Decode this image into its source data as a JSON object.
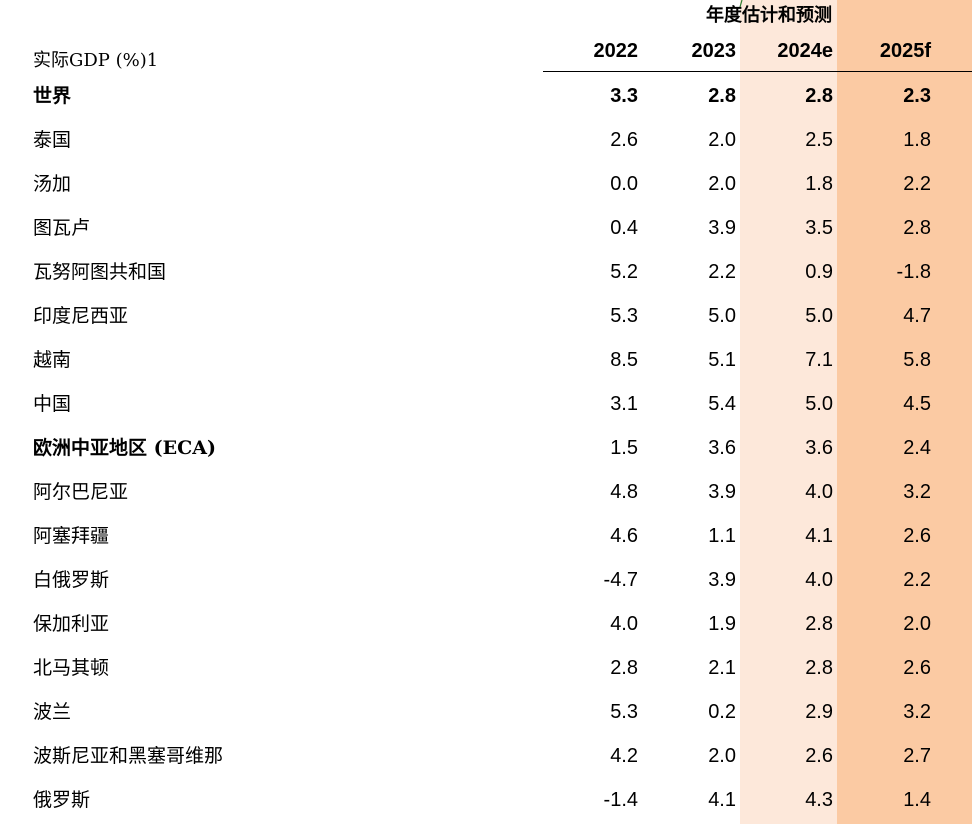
{
  "colors": {
    "estimate_band": "#fde8da",
    "forecast_band": "#fbcaa3",
    "tick_mark": "#2e7d32"
  },
  "header": {
    "super_title": "年度估计和预测",
    "row_label": "实际GDP (%)1",
    "years": [
      "2022",
      "2023",
      "2024e",
      "2025f"
    ]
  },
  "table": {
    "rows": [
      {
        "name": "世界",
        "bold": true,
        "values": [
          "3.3",
          "2.8",
          "2.8",
          "2.3"
        ]
      },
      {
        "name": "泰国",
        "bold": false,
        "values": [
          "2.6",
          "2.0",
          "2.5",
          "1.8"
        ]
      },
      {
        "name": "汤加",
        "bold": false,
        "values": [
          "0.0",
          "2.0",
          "1.8",
          "2.2"
        ]
      },
      {
        "name": "图瓦卢",
        "bold": false,
        "values": [
          "0.4",
          "3.9",
          "3.5",
          "2.8"
        ]
      },
      {
        "name": "瓦努阿图共和国",
        "bold": false,
        "values": [
          "5.2",
          "2.2",
          "0.9",
          "-1.8"
        ]
      },
      {
        "name": "印度尼西亚",
        "bold": false,
        "values": [
          "5.3",
          "5.0",
          "5.0",
          "4.7"
        ]
      },
      {
        "name": "越南",
        "bold": false,
        "values": [
          "8.5",
          "5.1",
          "7.1",
          "5.8"
        ]
      },
      {
        "name": "中国",
        "bold": false,
        "values": [
          "3.1",
          "5.4",
          "5.0",
          "4.5"
        ]
      },
      {
        "name": "欧洲中亚地区 (ECA)",
        "bold": true,
        "values": [
          "1.5",
          "3.6",
          "3.6",
          "2.4"
        ]
      },
      {
        "name": "阿尔巴尼亚",
        "bold": false,
        "values": [
          "4.8",
          "3.9",
          "4.0",
          "3.2"
        ]
      },
      {
        "name": "阿塞拜疆",
        "bold": false,
        "values": [
          "4.6",
          "1.1",
          "4.1",
          "2.6"
        ]
      },
      {
        "name": "白俄罗斯",
        "bold": false,
        "values": [
          "-4.7",
          "3.9",
          "4.0",
          "2.2"
        ]
      },
      {
        "name": "保加利亚",
        "bold": false,
        "values": [
          "4.0",
          "1.9",
          "2.8",
          "2.0"
        ]
      },
      {
        "name": "北马其顿",
        "bold": false,
        "values": [
          "2.8",
          "2.1",
          "2.8",
          "2.6"
        ]
      },
      {
        "name": "波兰",
        "bold": false,
        "values": [
          "5.3",
          "0.2",
          "2.9",
          "3.2"
        ]
      },
      {
        "name": "波斯尼亚和黑塞哥维那",
        "bold": false,
        "values": [
          "4.2",
          "2.0",
          "2.6",
          "2.7"
        ]
      },
      {
        "name": "俄罗斯",
        "bold": false,
        "values": [
          "-1.4",
          "4.1",
          "4.3",
          "1.4"
        ]
      }
    ]
  }
}
